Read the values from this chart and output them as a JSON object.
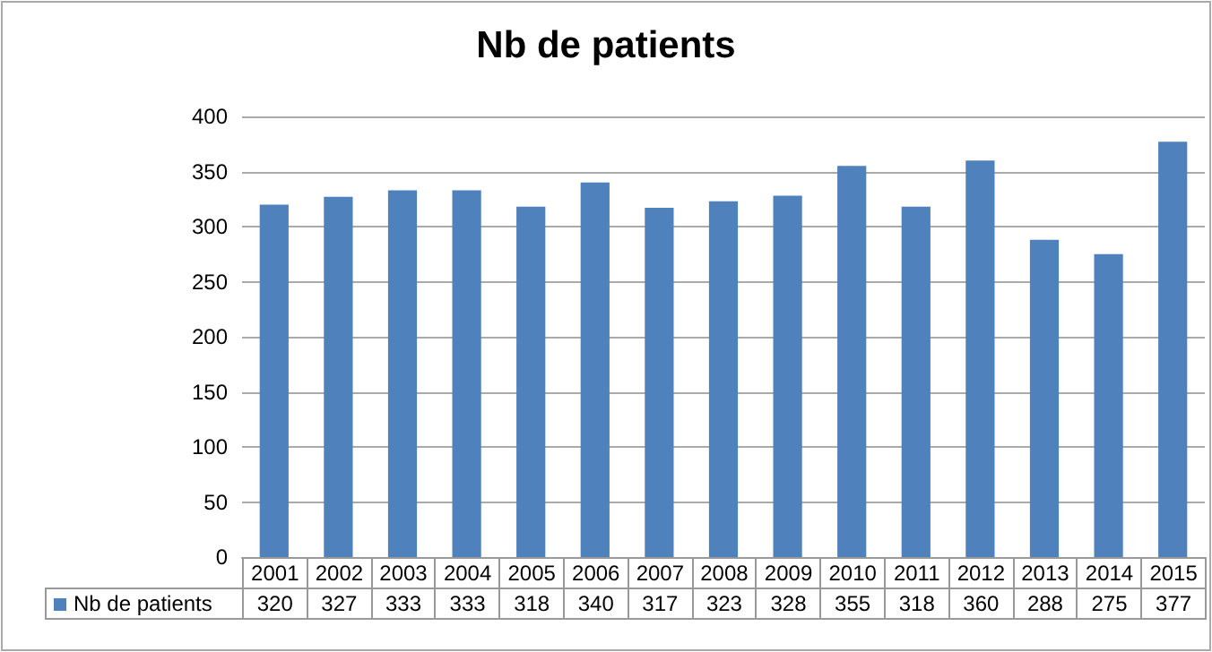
{
  "chart_data": {
    "type": "bar",
    "title": "Nb de patients",
    "categories": [
      "2001",
      "2002",
      "2003",
      "2004",
      "2005",
      "2006",
      "2007",
      "2008",
      "2009",
      "2010",
      "2011",
      "2012",
      "2013",
      "2014",
      "2015"
    ],
    "series": [
      {
        "name": "Nb de patients",
        "color": "#4f81bd",
        "values": [
          320,
          327,
          333,
          333,
          318,
          340,
          317,
          323,
          328,
          355,
          318,
          360,
          288,
          275,
          377
        ]
      }
    ],
    "ylim": [
      0,
      400
    ],
    "yticks": [
      0,
      50,
      100,
      150,
      200,
      250,
      300,
      350,
      400
    ],
    "grid": "y",
    "legend": "bottom left",
    "data_labels": true
  }
}
